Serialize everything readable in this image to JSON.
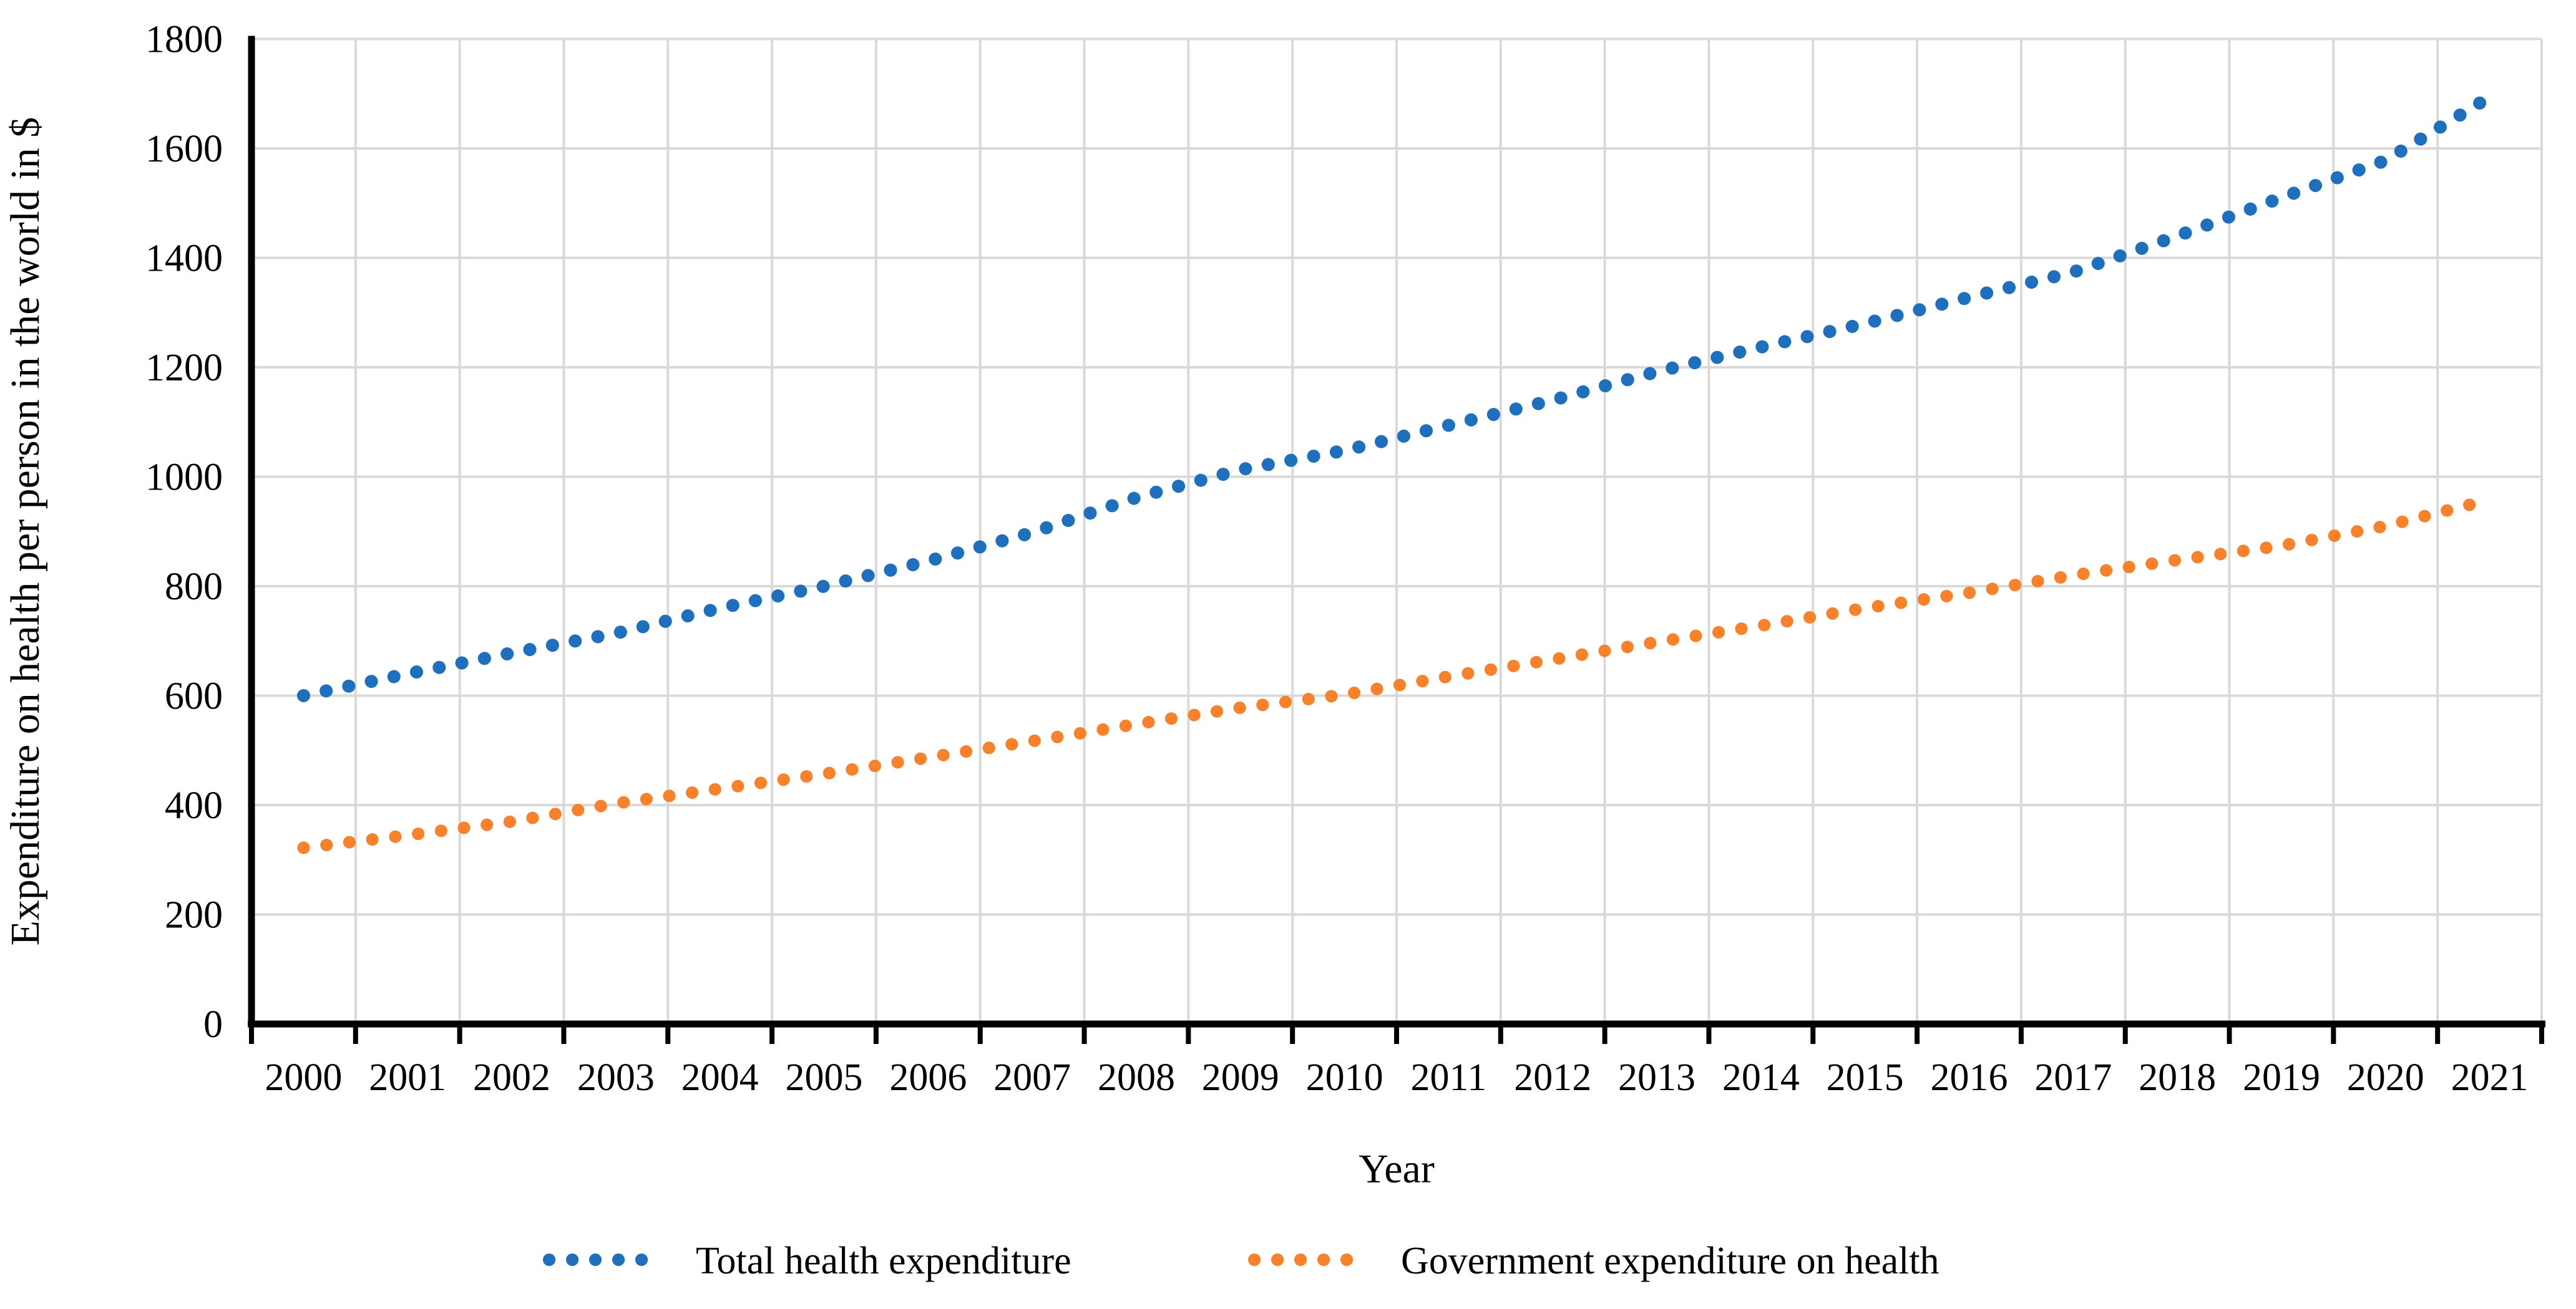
{
  "chart_data": {
    "type": "line",
    "line_style": "dotted",
    "title": "",
    "xlabel": "Year",
    "ylabel": "Expenditure on health per person in the world in $",
    "categories": [
      "2000",
      "2001",
      "2002",
      "2003",
      "2004",
      "2005",
      "2006",
      "2007",
      "2008",
      "2009",
      "2010",
      "2011",
      "2012",
      "2013",
      "2014",
      "2015",
      "2016",
      "2017",
      "2018",
      "2019",
      "2020",
      "2021"
    ],
    "series": [
      {
        "name": "Total health expenditure",
        "color": "#1F6FBF",
        "values": [
          600,
          640,
          678,
          714,
          760,
          800,
          846,
          898,
          962,
          1013,
          1048,
          1094,
          1140,
          1192,
          1237,
          1280,
          1328,
          1374,
          1440,
          1510,
          1578,
          1694
        ]
      },
      {
        "name": "Government expenditure on health",
        "color": "#F9812A",
        "values": [
          322,
          345,
          370,
          403,
          430,
          457,
          487,
          517,
          548,
          578,
          602,
          635,
          666,
          698,
          728,
          760,
          788,
          820,
          848,
          874,
          910,
          958
        ]
      }
    ],
    "ylim": [
      0,
      1800
    ],
    "ytick_step": 200,
    "grid": true,
    "legend_position": "bottom"
  },
  "colors": {
    "gridline": "#D9D9D9",
    "axis": "#000000",
    "background": "#FFFFFF",
    "series_total": "#1F6FBF",
    "series_government": "#F9812A"
  }
}
